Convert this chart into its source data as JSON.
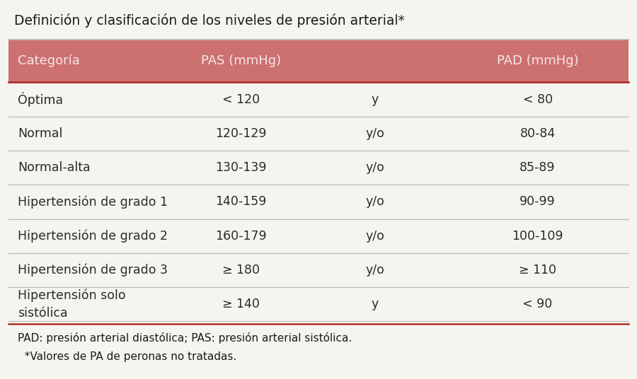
{
  "title": "Definición y clasificación de los niveles de presión arterial*",
  "header": [
    "Categoría",
    "PAS (mmHg)",
    "",
    "PAD (mmHg)"
  ],
  "rows": [
    [
      "Óptima",
      "< 120",
      "y",
      "< 80"
    ],
    [
      "Normal",
      "120-129",
      "y/o",
      "80-84"
    ],
    [
      "Normal-alta",
      "130-139",
      "y/o",
      "85-89"
    ],
    [
      "Hipertensión de grado 1",
      "140-159",
      "y/o",
      "90-99"
    ],
    [
      "Hipertensión de grado 2",
      "160-179",
      "y/o",
      "100-109"
    ],
    [
      "Hipertensión de grado 3",
      "≥ 180",
      "y/o",
      "≥ 110"
    ],
    [
      "Hipertensión solo\nsistólica",
      "≥ 140",
      "y",
      "< 90"
    ]
  ],
  "footer_lines": [
    "PAD: presión arterial diastólica; PAS: presión arterial sistólica.",
    "  *Valores de PA de peronas no tratadas."
  ],
  "header_bg": "#cd7070",
  "header_text_color": "#f5e8e8",
  "row_text_color": "#2a2a2a",
  "separator_color": "#bbbbbb",
  "strong_separator_color": "#b03030",
  "outer_bg": "#f5f5f0",
  "title_color": "#1a1a1a",
  "footer_text_color": "#1a1a1a",
  "figsize": [
    9.0,
    5.36
  ],
  "dpi": 100
}
